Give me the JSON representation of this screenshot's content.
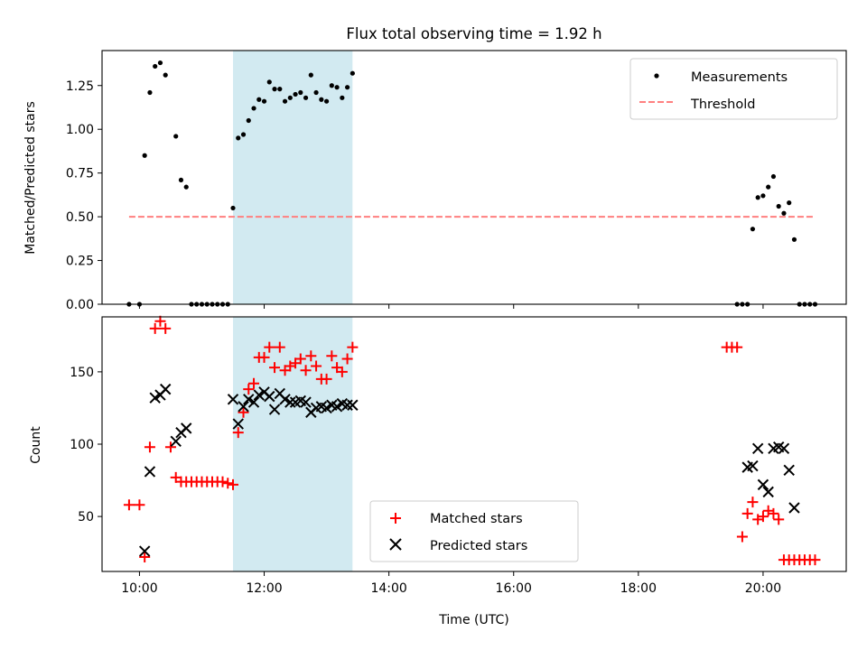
{
  "chart_data": [
    {
      "type": "scatter",
      "title": "Flux total observing time = 1.92 h",
      "xlabel": "",
      "ylabel": "Matched/Predicted stars",
      "xlim": [
        "09:24",
        "21:20"
      ],
      "ylim": [
        0,
        1.45
      ],
      "yticks": [
        0.0,
        0.25,
        0.5,
        0.75,
        1.0,
        1.25
      ],
      "ytick_labels": [
        "0.00",
        "0.25",
        "0.50",
        "0.75",
        "1.00",
        "1.25"
      ],
      "xticks": [
        "10:00",
        "12:00",
        "14:00",
        "16:00",
        "18:00",
        "20:00"
      ],
      "xtick_labels_visible": false,
      "shaded_span": {
        "x": [
          "11:30",
          "13:25"
        ],
        "color": "#add8e6"
      },
      "legend": {
        "position": "upper right",
        "entries": [
          "Measurements",
          "Threshold"
        ]
      },
      "series": [
        {
          "name": "Measurements",
          "marker": "dot",
          "color": "#000000",
          "x": [
            "09:50",
            "10:00",
            "10:05",
            "10:10",
            "10:15",
            "10:20",
            "10:25",
            "10:35",
            "10:40",
            "10:45",
            "10:50",
            "10:55",
            "11:00",
            "11:05",
            "11:10",
            "11:15",
            "11:20",
            "11:25",
            "11:30",
            "11:35",
            "11:40",
            "11:45",
            "11:50",
            "11:55",
            "12:00",
            "12:05",
            "12:10",
            "12:15",
            "12:20",
            "12:25",
            "12:30",
            "12:35",
            "12:40",
            "12:45",
            "12:50",
            "12:55",
            "13:00",
            "13:05",
            "13:10",
            "13:15",
            "13:20",
            "13:25",
            "19:35",
            "19:40",
            "19:45",
            "19:50",
            "19:55",
            "20:00",
            "20:05",
            "20:10",
            "20:15",
            "20:20",
            "20:25",
            "20:30",
            "20:35",
            "20:40",
            "20:45",
            "20:50"
          ],
          "y": [
            0,
            0,
            0.85,
            1.21,
            1.36,
            1.38,
            1.31,
            0.96,
            0.71,
            0.67,
            0,
            0,
            0,
            0,
            0,
            0,
            0,
            0,
            0.55,
            0.95,
            0.97,
            1.05,
            1.12,
            1.17,
            1.16,
            1.27,
            1.23,
            1.23,
            1.16,
            1.18,
            1.2,
            1.21,
            1.18,
            1.31,
            1.21,
            1.17,
            1.16,
            1.25,
            1.24,
            1.18,
            1.24,
            1.32,
            0,
            0,
            0,
            0.43,
            0.61,
            0.62,
            0.67,
            0.73,
            0.56,
            0.52,
            0.58,
            0.37,
            0,
            0,
            0,
            0
          ]
        },
        {
          "name": "Threshold",
          "style": "dashed",
          "color": "#ff7f7f",
          "x": [
            "09:50",
            "20:50"
          ],
          "y": [
            0.5,
            0.5
          ]
        }
      ]
    },
    {
      "type": "scatter",
      "title": "",
      "xlabel": "Time (UTC)",
      "ylabel": "Count",
      "xlim": [
        "09:24",
        "21:20"
      ],
      "ylim": [
        12,
        188
      ],
      "yticks": [
        50,
        100,
        150
      ],
      "ytick_labels": [
        "50",
        "100",
        "150"
      ],
      "xticks": [
        "10:00",
        "12:00",
        "14:00",
        "16:00",
        "18:00",
        "20:00"
      ],
      "xtick_labels": [
        "10:00",
        "12:00",
        "14:00",
        "16:00",
        "18:00",
        "20:00"
      ],
      "shaded_span": {
        "x": [
          "11:30",
          "13:25"
        ],
        "color": "#add8e6"
      },
      "legend": {
        "position": "lower center",
        "entries": [
          "Matched stars",
          "Predicted stars"
        ]
      },
      "series": [
        {
          "name": "Matched stars",
          "marker": "+",
          "color": "#ff0000",
          "x": [
            "09:50",
            "10:00",
            "10:05",
            "10:10",
            "10:15",
            "10:20",
            "10:25",
            "10:30",
            "10:35",
            "10:40",
            "10:45",
            "10:50",
            "10:55",
            "11:00",
            "11:05",
            "11:10",
            "11:15",
            "11:20",
            "11:25",
            "11:30",
            "11:35",
            "11:40",
            "11:45",
            "11:50",
            "11:55",
            "12:00",
            "12:05",
            "12:10",
            "12:15",
            "12:20",
            "12:25",
            "12:30",
            "12:35",
            "12:40",
            "12:45",
            "12:50",
            "12:55",
            "13:00",
            "13:05",
            "13:10",
            "13:15",
            "13:20",
            "13:25",
            "19:25",
            "19:30",
            "19:35",
            "19:40",
            "19:45",
            "19:50",
            "19:55",
            "20:00",
            "20:05",
            "20:10",
            "20:15",
            "20:20",
            "20:25",
            "20:30",
            "20:35",
            "20:40",
            "20:45",
            "20:50"
          ],
          "y": [
            58,
            58,
            22,
            98,
            180,
            185,
            180,
            98,
            77,
            74,
            74,
            74,
            74,
            74,
            74,
            74,
            74,
            74,
            73,
            72,
            108,
            122,
            138,
            142,
            160,
            160,
            167,
            153,
            167,
            151,
            154,
            156,
            159,
            151,
            161,
            154,
            145,
            145,
            161,
            153,
            150,
            159,
            167,
            167,
            167,
            167,
            36,
            52,
            60,
            48,
            50,
            54,
            52,
            48,
            20,
            20,
            20,
            20,
            20,
            20,
            20
          ]
        },
        {
          "name": "Predicted stars",
          "marker": "x",
          "color": "#000000",
          "x": [
            "10:05",
            "10:10",
            "10:15",
            "10:20",
            "10:25",
            "10:35",
            "10:40",
            "10:45",
            "11:30",
            "11:35",
            "11:40",
            "11:45",
            "11:50",
            "11:55",
            "12:00",
            "12:05",
            "12:10",
            "12:15",
            "12:20",
            "12:25",
            "12:30",
            "12:35",
            "12:40",
            "12:45",
            "12:50",
            "12:55",
            "13:00",
            "13:05",
            "13:10",
            "13:15",
            "13:20",
            "13:25",
            "19:45",
            "19:50",
            "19:55",
            "20:00",
            "20:05",
            "20:10",
            "20:15",
            "20:20",
            "20:25",
            "20:30"
          ],
          "y": [
            26,
            81,
            132,
            134,
            138,
            102,
            108,
            111,
            131,
            114,
            126,
            131,
            129,
            134,
            136,
            133,
            124,
            135,
            131,
            129,
            129,
            130,
            129,
            122,
            125,
            126,
            125,
            127,
            126,
            128,
            127,
            127,
            84,
            85,
            97,
            72,
            67,
            97,
            98,
            97,
            82,
            56
          ]
        }
      ]
    }
  ]
}
